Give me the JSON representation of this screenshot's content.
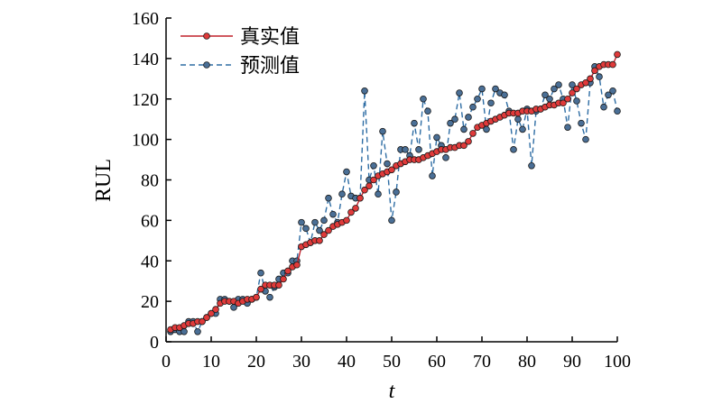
{
  "chart_data": {
    "type": "line",
    "xlabel": "t",
    "ylabel": "RUL",
    "xlim": [
      0,
      100
    ],
    "ylim": [
      0,
      160
    ],
    "xticks": [
      0,
      10,
      20,
      30,
      40,
      50,
      60,
      70,
      80,
      90,
      100
    ],
    "yticks": [
      0,
      20,
      40,
      60,
      80,
      100,
      120,
      140,
      160
    ],
    "grid": false,
    "legend": "top-left",
    "x": [
      1,
      2,
      3,
      4,
      5,
      6,
      7,
      8,
      9,
      10,
      11,
      12,
      13,
      14,
      15,
      16,
      17,
      18,
      19,
      20,
      21,
      22,
      23,
      24,
      25,
      26,
      27,
      28,
      29,
      30,
      31,
      32,
      33,
      34,
      35,
      36,
      37,
      38,
      39,
      40,
      41,
      42,
      43,
      44,
      45,
      46,
      47,
      48,
      49,
      50,
      51,
      52,
      53,
      54,
      55,
      56,
      57,
      58,
      59,
      60,
      61,
      62,
      63,
      64,
      65,
      66,
      67,
      68,
      69,
      70,
      71,
      72,
      73,
      74,
      75,
      76,
      77,
      78,
      79,
      80,
      81,
      82,
      83,
      84,
      85,
      86,
      87,
      88,
      89,
      90,
      91,
      92,
      93,
      94,
      95,
      96,
      97,
      98,
      99,
      100
    ],
    "series": [
      {
        "name": "真实值",
        "color": "#c0202a",
        "marker_fill": "#e03a3a",
        "linestyle": "solid",
        "values": [
          6,
          7,
          7,
          8,
          9,
          9,
          10,
          10,
          12,
          14,
          16,
          19,
          20,
          20,
          20,
          19,
          20,
          21,
          21,
          22,
          26,
          28,
          28,
          28,
          28,
          31,
          35,
          37,
          38,
          47,
          48,
          49,
          50,
          50,
          53,
          55,
          57,
          58,
          59,
          60,
          64,
          66,
          71,
          75,
          77,
          80,
          82,
          83,
          84,
          85,
          87,
          88,
          89,
          90,
          90,
          90,
          91,
          92,
          93,
          94,
          95,
          95,
          96,
          96,
          97,
          97,
          99,
          103,
          106,
          107,
          108,
          109,
          110,
          111,
          112,
          113,
          113,
          113,
          114,
          114,
          114,
          115,
          115,
          116,
          117,
          117,
          118,
          118,
          120,
          123,
          125,
          127,
          128,
          130,
          134,
          136,
          137,
          137,
          137,
          142
        ]
      },
      {
        "name": "预测值",
        "color": "#2e6da4",
        "marker_fill": "#4a6f96",
        "linestyle": "dashed",
        "values": [
          5,
          6,
          5,
          5,
          10,
          10,
          5,
          10,
          12,
          14,
          14,
          21,
          21,
          20,
          17,
          21,
          21,
          19,
          21,
          22,
          34,
          25,
          22,
          27,
          31,
          34,
          34,
          40,
          40,
          59,
          56,
          49,
          59,
          55,
          60,
          71,
          63,
          59,
          73,
          84,
          72,
          71,
          71,
          124,
          80,
          87,
          73,
          104,
          88,
          60,
          74,
          95,
          95,
          92,
          108,
          95,
          120,
          114,
          82,
          101,
          97,
          91,
          108,
          110,
          123,
          105,
          111,
          116,
          120,
          125,
          105,
          118,
          125,
          123,
          122,
          114,
          95,
          110,
          105,
          115,
          87,
          114,
          115,
          122,
          120,
          125,
          127,
          120,
          106,
          127,
          119,
          108,
          100,
          128,
          136,
          131,
          116,
          122,
          124,
          114
        ]
      }
    ]
  }
}
